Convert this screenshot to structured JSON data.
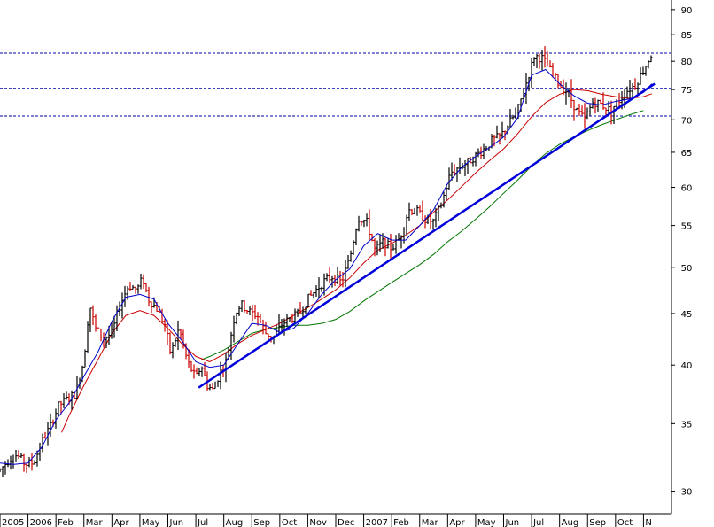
{
  "chart_data": {
    "type": "candlestick",
    "title": "",
    "xlabel": "",
    "ylabel": "",
    "y_scale": "log",
    "ylim": [
      28.5,
      92
    ],
    "y_ticks": [
      30,
      35,
      40,
      45,
      50,
      55,
      60,
      65,
      70,
      75,
      80,
      85,
      90
    ],
    "x_ticks": [
      "2005",
      "2006",
      "Feb",
      "Mar",
      "Apr",
      "May",
      "Jun",
      "Jul",
      "Aug",
      "Sep",
      "Oct",
      "Nov",
      "Dec",
      "2007",
      "Feb",
      "Mar",
      "Apr",
      "May",
      "Jun",
      "Jul",
      "Aug",
      "Sep",
      "Oct",
      "N"
    ],
    "horizontal_lines": [
      81.5,
      75.2,
      70.6
    ],
    "colors": {
      "up_bar": "#000000",
      "down_bar": "#cc0000",
      "short_ma": "#0000cc",
      "medium_ma": "#cc0000",
      "long_ma": "#007700",
      "trendline": "#0000dd",
      "hlines": "#0000aa",
      "axis": "#000000"
    },
    "grid": false,
    "legend": "none",
    "trendline": {
      "start": [
        "Jul 2006",
        38.0
      ],
      "end": [
        "Nov 2007",
        76.0
      ]
    },
    "short_ma": [
      [
        0,
        32.0
      ],
      [
        0.5,
        31.9
      ],
      [
        1,
        32.0
      ],
      [
        1.5,
        33.2
      ],
      [
        2,
        35.3
      ],
      [
        2.5,
        36.8
      ],
      [
        3,
        39.0
      ],
      [
        3.5,
        41.2
      ],
      [
        4,
        44.2
      ],
      [
        4.5,
        46.7
      ],
      [
        5,
        47.0
      ],
      [
        5.5,
        46.5
      ],
      [
        6,
        44.0
      ],
      [
        6.5,
        42.3
      ],
      [
        7,
        40.3
      ],
      [
        7.5,
        39.8
      ],
      [
        8,
        40.0
      ],
      [
        8.5,
        42.0
      ],
      [
        9,
        44.0
      ],
      [
        9.5,
        43.8
      ],
      [
        10,
        43.1
      ],
      [
        10.5,
        43.5
      ],
      [
        11,
        45.0
      ],
      [
        11.5,
        47.0
      ],
      [
        12,
        48.6
      ],
      [
        12.5,
        49.8
      ],
      [
        13,
        52.5
      ],
      [
        13.5,
        54.0
      ],
      [
        14,
        53.2
      ],
      [
        14.5,
        53.2
      ],
      [
        15,
        55.0
      ],
      [
        15.5,
        57.0
      ],
      [
        16,
        60.5
      ],
      [
        16.5,
        62.8
      ],
      [
        17,
        64.4
      ],
      [
        17.5,
        65.7
      ],
      [
        18,
        67.3
      ],
      [
        18.5,
        70.3
      ],
      [
        19,
        77.5
      ],
      [
        19.5,
        78.5
      ],
      [
        20,
        76.0
      ],
      [
        20.5,
        74.0
      ],
      [
        21,
        72.7
      ],
      [
        21.5,
        72.4
      ],
      [
        22,
        73.0
      ],
      [
        22.5,
        73.4
      ],
      [
        23,
        74.5
      ],
      [
        23.3,
        76.0
      ]
    ],
    "medium_ma": [
      [
        2.2,
        34.3
      ],
      [
        2.5,
        35.8
      ],
      [
        3,
        38.2
      ],
      [
        3.5,
        40.5
      ],
      [
        4,
        43.0
      ],
      [
        4.5,
        44.8
      ],
      [
        5,
        45.3
      ],
      [
        5.5,
        44.8
      ],
      [
        6,
        43.5
      ],
      [
        6.5,
        42.0
      ],
      [
        7,
        40.8
      ],
      [
        7.5,
        40.3
      ],
      [
        8,
        41.0
      ],
      [
        8.5,
        42.0
      ],
      [
        9,
        42.8
      ],
      [
        9.5,
        43.4
      ],
      [
        10,
        44.0
      ],
      [
        10.5,
        44.8
      ],
      [
        11,
        45.6
      ],
      [
        11.5,
        46.5
      ],
      [
        12,
        47.5
      ],
      [
        12.5,
        48.8
      ],
      [
        13,
        50.5
      ],
      [
        13.5,
        52.0
      ],
      [
        14,
        52.8
      ],
      [
        14.5,
        53.8
      ],
      [
        15,
        55.0
      ],
      [
        15.5,
        56.7
      ],
      [
        16,
        58.3
      ],
      [
        16.5,
        60.1
      ],
      [
        17,
        62.0
      ],
      [
        17.5,
        63.8
      ],
      [
        18,
        65.5
      ],
      [
        18.5,
        67.8
      ],
      [
        19,
        70.5
      ],
      [
        19.5,
        72.8
      ],
      [
        20,
        74.2
      ],
      [
        20.5,
        75.0
      ],
      [
        21,
        74.8
      ],
      [
        21.5,
        74.2
      ],
      [
        22,
        73.8
      ],
      [
        22.5,
        73.5
      ],
      [
        23,
        73.8
      ],
      [
        23.3,
        74.3
      ]
    ],
    "long_ma": [
      [
        7.2,
        40.5
      ],
      [
        7.5,
        40.8
      ],
      [
        8,
        41.4
      ],
      [
        8.5,
        42.2
      ],
      [
        9,
        43.0
      ],
      [
        9.5,
        43.4
      ],
      [
        10,
        43.6
      ],
      [
        10.5,
        43.8
      ],
      [
        11,
        43.8
      ],
      [
        11.5,
        44.0
      ],
      [
        12,
        44.4
      ],
      [
        12.5,
        45.2
      ],
      [
        13,
        46.3
      ],
      [
        13.5,
        47.3
      ],
      [
        14,
        48.3
      ],
      [
        14.5,
        49.3
      ],
      [
        15,
        50.3
      ],
      [
        15.5,
        51.5
      ],
      [
        16,
        53.0
      ],
      [
        16.5,
        54.3
      ],
      [
        17,
        55.8
      ],
      [
        17.5,
        57.4
      ],
      [
        18,
        59.2
      ],
      [
        18.5,
        61.0
      ],
      [
        19,
        63.0
      ],
      [
        19.5,
        64.8
      ],
      [
        20,
        66.2
      ],
      [
        20.5,
        67.3
      ],
      [
        21,
        68.3
      ],
      [
        21.5,
        69.2
      ],
      [
        22,
        70.0
      ],
      [
        22.5,
        70.8
      ],
      [
        23,
        71.5
      ]
    ],
    "price_path": [
      [
        0,
        31.5
      ],
      [
        0.3,
        32.2
      ],
      [
        0.6,
        32.6
      ],
      [
        0.9,
        31.9
      ],
      [
        1.2,
        32.0
      ],
      [
        1.5,
        33.6
      ],
      [
        1.8,
        34.8
      ],
      [
        2.1,
        36.5
      ],
      [
        2.4,
        37.0
      ],
      [
        2.7,
        37.5
      ],
      [
        3.0,
        40.5
      ],
      [
        3.2,
        46.0
      ],
      [
        3.4,
        43.5
      ],
      [
        3.7,
        42.5
      ],
      [
        4.0,
        43.0
      ],
      [
        4.3,
        46.0
      ],
      [
        4.6,
        48.0
      ],
      [
        4.9,
        47.5
      ],
      [
        5.1,
        48.8
      ],
      [
        5.3,
        46.5
      ],
      [
        5.6,
        45.5
      ],
      [
        5.9,
        43.8
      ],
      [
        6.1,
        41.0
      ],
      [
        6.4,
        43.5
      ],
      [
        6.7,
        40.3
      ],
      [
        7.0,
        38.8
      ],
      [
        7.2,
        40.0
      ],
      [
        7.4,
        38.2
      ],
      [
        7.6,
        37.8
      ],
      [
        7.9,
        39.5
      ],
      [
        8.1,
        40.5
      ],
      [
        8.4,
        45.0
      ],
      [
        8.6,
        46.0
      ],
      [
        8.9,
        45.2
      ],
      [
        9.2,
        44.8
      ],
      [
        9.5,
        43.0
      ],
      [
        9.8,
        42.7
      ],
      [
        10.1,
        44.0
      ],
      [
        10.4,
        44.5
      ],
      [
        10.7,
        45.0
      ],
      [
        11.0,
        46.5
      ],
      [
        11.3,
        47.5
      ],
      [
        11.6,
        48.5
      ],
      [
        11.9,
        49.0
      ],
      [
        12.2,
        48.3
      ],
      [
        12.5,
        51.0
      ],
      [
        12.8,
        56.0
      ],
      [
        13.1,
        55.5
      ],
      [
        13.4,
        52.0
      ],
      [
        13.7,
        53.0
      ],
      [
        14.0,
        52.2
      ],
      [
        14.3,
        53.5
      ],
      [
        14.6,
        57.0
      ],
      [
        14.9,
        56.8
      ],
      [
        15.2,
        55.8
      ],
      [
        15.5,
        55.5
      ],
      [
        15.8,
        58.0
      ],
      [
        16.1,
        62.0
      ],
      [
        16.4,
        62.8
      ],
      [
        16.7,
        63.5
      ],
      [
        17.0,
        64.5
      ],
      [
        17.3,
        65.5
      ],
      [
        17.6,
        66.8
      ],
      [
        17.9,
        67.5
      ],
      [
        18.2,
        69.5
      ],
      [
        18.5,
        71.5
      ],
      [
        18.8,
        76.0
      ],
      [
        19.1,
        81.0
      ],
      [
        19.4,
        80.5
      ],
      [
        19.7,
        78.0
      ],
      [
        20.0,
        75.8
      ],
      [
        20.3,
        74.5
      ],
      [
        20.6,
        71.5
      ],
      [
        20.9,
        70.0
      ],
      [
        21.2,
        73.0
      ],
      [
        21.5,
        72.5
      ],
      [
        21.8,
        71.5
      ],
      [
        22.1,
        73.0
      ],
      [
        22.4,
        74.8
      ],
      [
        22.7,
        75.8
      ],
      [
        23.0,
        78.5
      ],
      [
        23.3,
        81.5
      ]
    ]
  }
}
